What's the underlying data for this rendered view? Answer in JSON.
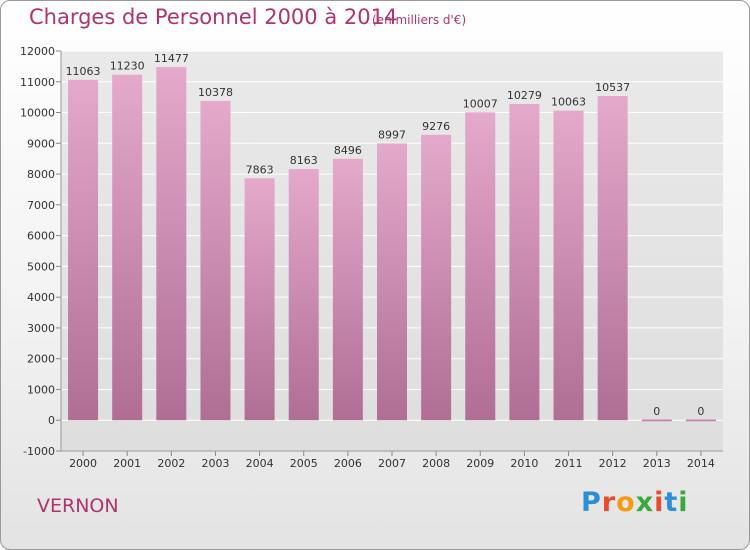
{
  "header": {
    "title": "Charges de Personnel 2000 à 2014",
    "subtitle": "(en milliers d'€)"
  },
  "footer": {
    "city": "VERNON",
    "logo": [
      "P",
      "r",
      "o",
      "x",
      "i",
      "t",
      "i"
    ]
  },
  "colors": {
    "bar_top": "#e4a9cb",
    "bar_bottom": "#b06e95",
    "title": "#b0336e"
  },
  "chart_data": {
    "type": "bar",
    "categories": [
      "2000",
      "2001",
      "2002",
      "2003",
      "2004",
      "2005",
      "2006",
      "2007",
      "2008",
      "2009",
      "2010",
      "2011",
      "2012",
      "2013",
      "2014"
    ],
    "values": [
      11063,
      11230,
      11477,
      10378,
      7863,
      8163,
      8496,
      8997,
      9276,
      10007,
      10279,
      10063,
      10537,
      0,
      0
    ],
    "ylim": [
      -1000,
      12000
    ],
    "yticks": [
      "-1000",
      "0",
      "1000",
      "2000",
      "3000",
      "4000",
      "5000",
      "6000",
      "7000",
      "8000",
      "9000",
      "10000",
      "11000",
      "12000"
    ],
    "grid": true
  }
}
